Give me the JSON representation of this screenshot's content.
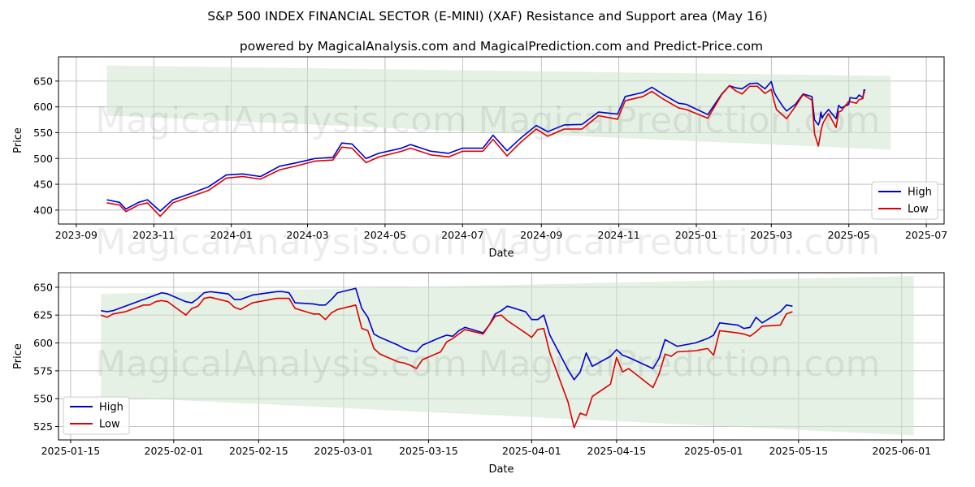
{
  "title": "S&P 500 INDEX FINANCIAL SECTOR (E-MINI) (XAF) Resistance and Support area (May 16)",
  "subtitle": "powered by MagicalAnalysis.com and MagicalPrediction.com and Predict-Price.com",
  "watermarks": [
    "MagicalAnalysis.com",
    "MagicalPrediction.com"
  ],
  "colors": {
    "high": "#0000cc",
    "low": "#dd0000",
    "band": "#cfe6cf",
    "grid": "#b0b0b0"
  },
  "chart_data": [
    {
      "type": "line",
      "xlabel": "Date",
      "ylabel": "Price",
      "x_tick_labels": [
        "2023-09",
        "2023-11",
        "2024-01",
        "2024-03",
        "2024-05",
        "2024-07",
        "2024-09",
        "2024-11",
        "2025-01",
        "2025-03",
        "2025-05",
        "2025-07"
      ],
      "x_tick_dates": [
        "2023-09-01",
        "2023-11-01",
        "2024-01-01",
        "2024-03-01",
        "2024-05-01",
        "2024-07-01",
        "2024-09-01",
        "2024-11-01",
        "2025-01-01",
        "2025-03-01",
        "2025-05-01",
        "2025-07-01"
      ],
      "xlim": [
        "2023-08-18",
        "2025-07-15"
      ],
      "y_ticks": [
        400,
        450,
        500,
        550,
        600,
        650
      ],
      "ylim": [
        373,
        697
      ],
      "grid": true,
      "legend": "lower right",
      "band": {
        "dates": [
          "2023-09-25",
          "2025-06-03"
        ],
        "upper": [
          680,
          660
        ],
        "lower": [
          583,
          517
        ]
      },
      "series": [
        {
          "name": "High",
          "dates": [
            "2023-09-25",
            "2023-10-05",
            "2023-10-10",
            "2023-10-20",
            "2023-10-27",
            "2023-11-06",
            "2023-11-16",
            "2023-12-01",
            "2023-12-14",
            "2023-12-28",
            "2024-01-10",
            "2024-01-24",
            "2024-02-08",
            "2024-02-22",
            "2024-03-07",
            "2024-03-21",
            "2024-03-28",
            "2024-04-05",
            "2024-04-16",
            "2024-04-26",
            "2024-05-14",
            "2024-05-21",
            "2024-06-06",
            "2024-06-20",
            "2024-07-01",
            "2024-07-17",
            "2024-07-25",
            "2024-08-05",
            "2024-08-16",
            "2024-08-28",
            "2024-09-06",
            "2024-09-19",
            "2024-10-03",
            "2024-10-16",
            "2024-10-31",
            "2024-11-06",
            "2024-11-20",
            "2024-11-27",
            "2024-12-06",
            "2024-12-18",
            "2024-12-24",
            "2025-01-10",
            "2025-01-21",
            "2025-01-27",
            "2025-02-01",
            "2025-02-06",
            "2025-02-12",
            "2025-02-18",
            "2025-02-24",
            "2025-03-01",
            "2025-03-03",
            "2025-03-05",
            "2025-03-10",
            "2025-03-13",
            "2025-03-20",
            "2025-03-26",
            "2025-04-02",
            "2025-04-04",
            "2025-04-07",
            "2025-04-08",
            "2025-04-09",
            "2025-04-10",
            "2025-04-11",
            "2025-04-15",
            "2025-04-21",
            "2025-04-23",
            "2025-04-25",
            "2025-05-01",
            "2025-05-02",
            "2025-05-07",
            "2025-05-09",
            "2025-05-12",
            "2025-05-13",
            "2025-05-14"
          ],
          "values": [
            420,
            415,
            402,
            415,
            420,
            398,
            420,
            433,
            445,
            468,
            470,
            465,
            485,
            492,
            500,
            502,
            530,
            528,
            500,
            510,
            520,
            527,
            514,
            510,
            520,
            520,
            545,
            515,
            540,
            564,
            552,
            565,
            566,
            590,
            586,
            620,
            628,
            638,
            624,
            607,
            605,
            585,
            625,
            641,
            637,
            635,
            645,
            646,
            635,
            649,
            630,
            620,
            601,
            592,
            605,
            625,
            620,
            575,
            565,
            572,
            590,
            578,
            583,
            595,
            577,
            603,
            598,
            605,
            618,
            616,
            623,
            618,
            633,
            632
          ]
        },
        {
          "name": "Low",
          "dates": [
            "2023-09-25",
            "2023-10-05",
            "2023-10-10",
            "2023-10-20",
            "2023-10-27",
            "2023-11-06",
            "2023-11-16",
            "2023-12-01",
            "2023-12-14",
            "2023-12-28",
            "2024-01-10",
            "2024-01-24",
            "2024-02-08",
            "2024-02-22",
            "2024-03-07",
            "2024-03-21",
            "2024-03-28",
            "2024-04-05",
            "2024-04-16",
            "2024-04-26",
            "2024-05-14",
            "2024-05-21",
            "2024-06-06",
            "2024-06-20",
            "2024-07-01",
            "2024-07-17",
            "2024-07-25",
            "2024-08-05",
            "2024-08-16",
            "2024-08-28",
            "2024-09-06",
            "2024-09-19",
            "2024-10-03",
            "2024-10-16",
            "2024-10-31",
            "2024-11-06",
            "2024-11-20",
            "2024-11-27",
            "2024-12-06",
            "2024-12-18",
            "2024-12-24",
            "2025-01-10",
            "2025-01-21",
            "2025-01-27",
            "2025-02-01",
            "2025-02-06",
            "2025-02-12",
            "2025-02-18",
            "2025-02-24",
            "2025-03-01",
            "2025-03-03",
            "2025-03-05",
            "2025-03-10",
            "2025-03-13",
            "2025-03-20",
            "2025-03-26",
            "2025-04-02",
            "2025-04-04",
            "2025-04-07",
            "2025-04-08",
            "2025-04-09",
            "2025-04-10",
            "2025-04-11",
            "2025-04-15",
            "2025-04-21",
            "2025-04-23",
            "2025-04-25",
            "2025-05-01",
            "2025-05-02",
            "2025-05-07",
            "2025-05-09",
            "2025-05-12",
            "2025-05-13",
            "2025-05-14"
          ],
          "values": [
            414,
            410,
            397,
            410,
            414,
            388,
            414,
            427,
            438,
            462,
            465,
            460,
            478,
            486,
            495,
            497,
            522,
            520,
            492,
            503,
            514,
            520,
            507,
            503,
            514,
            514,
            537,
            505,
            532,
            557,
            543,
            557,
            557,
            583,
            576,
            612,
            620,
            630,
            615,
            598,
            595,
            578,
            624,
            641,
            631,
            625,
            640,
            640,
            626,
            634,
            613,
            595,
            584,
            577,
            601,
            624,
            613,
            548,
            524,
            537,
            552,
            563,
            570,
            587,
            560,
            590,
            592,
            611,
            610,
            607,
            614,
            616,
            629,
            628
          ]
        }
      ]
    },
    {
      "type": "line",
      "xlabel": "Date",
      "ylabel": "Price",
      "x_tick_labels": [
        "2025-01-15",
        "2025-02-01",
        "2025-02-15",
        "2025-03-01",
        "2025-03-15",
        "2025-04-01",
        "2025-04-15",
        "2025-05-01",
        "2025-05-15",
        "2025-06-01"
      ],
      "x_tick_dates": [
        "2025-01-15",
        "2025-02-01",
        "2025-02-15",
        "2025-03-01",
        "2025-03-15",
        "2025-04-01",
        "2025-04-15",
        "2025-05-01",
        "2025-05-15",
        "2025-06-01"
      ],
      "xlim": [
        "2025-01-13",
        "2025-06-08"
      ],
      "y_ticks": [
        525,
        550,
        575,
        600,
        625,
        650
      ],
      "ylim": [
        513,
        663
      ],
      "grid": true,
      "legend": "lower left",
      "band": {
        "dates": [
          "2025-01-20",
          "2025-06-03"
        ],
        "upper": [
          644,
          660
        ],
        "lower": [
          552,
          517
        ]
      },
      "series": [
        {
          "name": "High",
          "dates": [
            "2025-01-20",
            "2025-01-21",
            "2025-01-22",
            "2025-01-23",
            "2025-01-24",
            "2025-01-27",
            "2025-01-28",
            "2025-01-29",
            "2025-01-30",
            "2025-01-31",
            "2025-02-03",
            "2025-02-04",
            "2025-02-05",
            "2025-02-06",
            "2025-02-07",
            "2025-02-10",
            "2025-02-11",
            "2025-02-12",
            "2025-02-13",
            "2025-02-14",
            "2025-02-18",
            "2025-02-19",
            "2025-02-20",
            "2025-02-21",
            "2025-02-24",
            "2025-02-25",
            "2025-02-26",
            "2025-02-27",
            "2025-02-28",
            "2025-03-03",
            "2025-03-04",
            "2025-03-05",
            "2025-03-06",
            "2025-03-07",
            "2025-03-10",
            "2025-03-11",
            "2025-03-12",
            "2025-03-13",
            "2025-03-14",
            "2025-03-17",
            "2025-03-18",
            "2025-03-19",
            "2025-03-20",
            "2025-03-21",
            "2025-03-24",
            "2025-03-25",
            "2025-03-26",
            "2025-03-27",
            "2025-03-28",
            "2025-03-31",
            "2025-04-01",
            "2025-04-02",
            "2025-04-03",
            "2025-04-04",
            "2025-04-07",
            "2025-04-08",
            "2025-04-09",
            "2025-04-10",
            "2025-04-11",
            "2025-04-14",
            "2025-04-15",
            "2025-04-16",
            "2025-04-17",
            "2025-04-21",
            "2025-04-22",
            "2025-04-23",
            "2025-04-24",
            "2025-04-25",
            "2025-04-28",
            "2025-04-29",
            "2025-04-30",
            "2025-05-01",
            "2025-05-02",
            "2025-05-05",
            "2025-05-06",
            "2025-05-07",
            "2025-05-08",
            "2025-05-09",
            "2025-05-12",
            "2025-05-13",
            "2025-05-14"
          ],
          "values": [
            629,
            628,
            629,
            631,
            633,
            639,
            641,
            643,
            645,
            644,
            637,
            636,
            640,
            645,
            646,
            644,
            639,
            639,
            641,
            643,
            646,
            646,
            645,
            636,
            635,
            634,
            634,
            639,
            645,
            649,
            631,
            623,
            608,
            605,
            598,
            595,
            593,
            592,
            598,
            605,
            607,
            606,
            611,
            614,
            609,
            616,
            626,
            629,
            633,
            628,
            621,
            621,
            625,
            607,
            576,
            567,
            574,
            591,
            579,
            588,
            594,
            589,
            587,
            577,
            586,
            603,
            600,
            597,
            600,
            602,
            604,
            607,
            618,
            616,
            613,
            614,
            623,
            618,
            628,
            634,
            633
          ]
        },
        {
          "name": "Low",
          "dates": [
            "2025-01-20",
            "2025-01-21",
            "2025-01-22",
            "2025-01-23",
            "2025-01-24",
            "2025-01-27",
            "2025-01-28",
            "2025-01-29",
            "2025-01-30",
            "2025-01-31",
            "2025-02-03",
            "2025-02-04",
            "2025-02-05",
            "2025-02-06",
            "2025-02-07",
            "2025-02-10",
            "2025-02-11",
            "2025-02-12",
            "2025-02-13",
            "2025-02-14",
            "2025-02-18",
            "2025-02-19",
            "2025-02-20",
            "2025-02-21",
            "2025-02-24",
            "2025-02-25",
            "2025-02-26",
            "2025-02-27",
            "2025-02-28",
            "2025-03-03",
            "2025-03-04",
            "2025-03-05",
            "2025-03-06",
            "2025-03-07",
            "2025-03-10",
            "2025-03-11",
            "2025-03-12",
            "2025-03-13",
            "2025-03-14",
            "2025-03-17",
            "2025-03-18",
            "2025-03-19",
            "2025-03-20",
            "2025-03-21",
            "2025-03-24",
            "2025-03-25",
            "2025-03-26",
            "2025-03-27",
            "2025-03-28",
            "2025-03-31",
            "2025-04-01",
            "2025-04-02",
            "2025-04-03",
            "2025-04-04",
            "2025-04-07",
            "2025-04-08",
            "2025-04-09",
            "2025-04-10",
            "2025-04-11",
            "2025-04-14",
            "2025-04-15",
            "2025-04-16",
            "2025-04-17",
            "2025-04-21",
            "2025-04-22",
            "2025-04-23",
            "2025-04-24",
            "2025-04-25",
            "2025-04-28",
            "2025-04-29",
            "2025-04-30",
            "2025-05-01",
            "2025-05-02",
            "2025-05-05",
            "2025-05-06",
            "2025-05-07",
            "2025-05-08",
            "2025-05-09",
            "2025-05-12",
            "2025-05-13",
            "2025-05-14"
          ],
          "values": [
            625,
            623,
            626,
            627,
            628,
            634,
            634,
            637,
            638,
            637,
            625,
            631,
            633,
            640,
            641,
            637,
            632,
            630,
            633,
            636,
            640,
            640,
            640,
            631,
            626,
            626,
            621,
            627,
            630,
            634,
            613,
            611,
            595,
            590,
            583,
            582,
            580,
            577,
            585,
            592,
            601,
            604,
            608,
            612,
            608,
            616,
            624,
            625,
            620,
            609,
            605,
            612,
            613,
            591,
            547,
            524,
            537,
            535,
            552,
            563,
            587,
            574,
            577,
            560,
            572,
            590,
            588,
            592,
            593,
            594,
            595,
            589,
            611,
            609,
            608,
            606,
            610,
            615,
            616,
            626,
            628
          ]
        }
      ]
    }
  ]
}
